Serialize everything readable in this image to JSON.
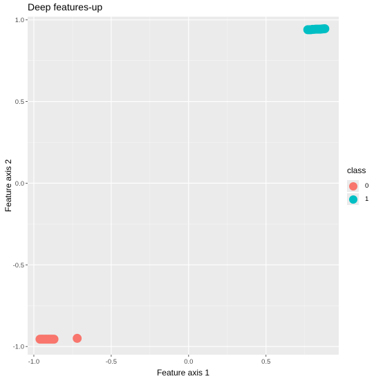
{
  "chart_data": {
    "type": "scatter",
    "title": "Deep features-up",
    "xlabel": "Feature axis 1",
    "ylabel": "Feature axis 2",
    "xlim": [
      -1.04,
      0.97
    ],
    "ylim": [
      -1.05,
      1.02
    ],
    "x_ticks": [
      -1.0,
      -0.5,
      0.0,
      0.5
    ],
    "x_tick_labels": [
      "-1.0",
      "-0.5",
      "0.0",
      "0.5"
    ],
    "y_ticks": [
      -1.0,
      -0.5,
      0.0,
      0.5,
      1.0
    ],
    "y_tick_labels": [
      "-1.0",
      "-0.5",
      "0.0",
      "0.5",
      "1.0"
    ],
    "grid": true,
    "legend": {
      "title": "class",
      "placement": "right"
    },
    "series": [
      {
        "name": "0",
        "color": "#F8766D",
        "points": [
          [
            -0.96,
            -0.955
          ],
          [
            -0.95,
            -0.955
          ],
          [
            -0.94,
            -0.955
          ],
          [
            -0.93,
            -0.955
          ],
          [
            -0.92,
            -0.955
          ],
          [
            -0.91,
            -0.955
          ],
          [
            -0.9,
            -0.955
          ],
          [
            -0.89,
            -0.955
          ],
          [
            -0.88,
            -0.955
          ],
          [
            -0.87,
            -0.955
          ],
          [
            -0.72,
            -0.95
          ]
        ]
      },
      {
        "name": "1",
        "color": "#00BFC4",
        "points": [
          [
            0.77,
            0.94
          ],
          [
            0.78,
            0.94
          ],
          [
            0.79,
            0.94
          ],
          [
            0.8,
            0.942
          ],
          [
            0.81,
            0.942
          ],
          [
            0.82,
            0.943
          ],
          [
            0.83,
            0.943
          ],
          [
            0.84,
            0.943
          ],
          [
            0.85,
            0.943
          ],
          [
            0.86,
            0.944
          ],
          [
            0.87,
            0.945
          ],
          [
            0.88,
            0.946
          ]
        ]
      }
    ]
  }
}
